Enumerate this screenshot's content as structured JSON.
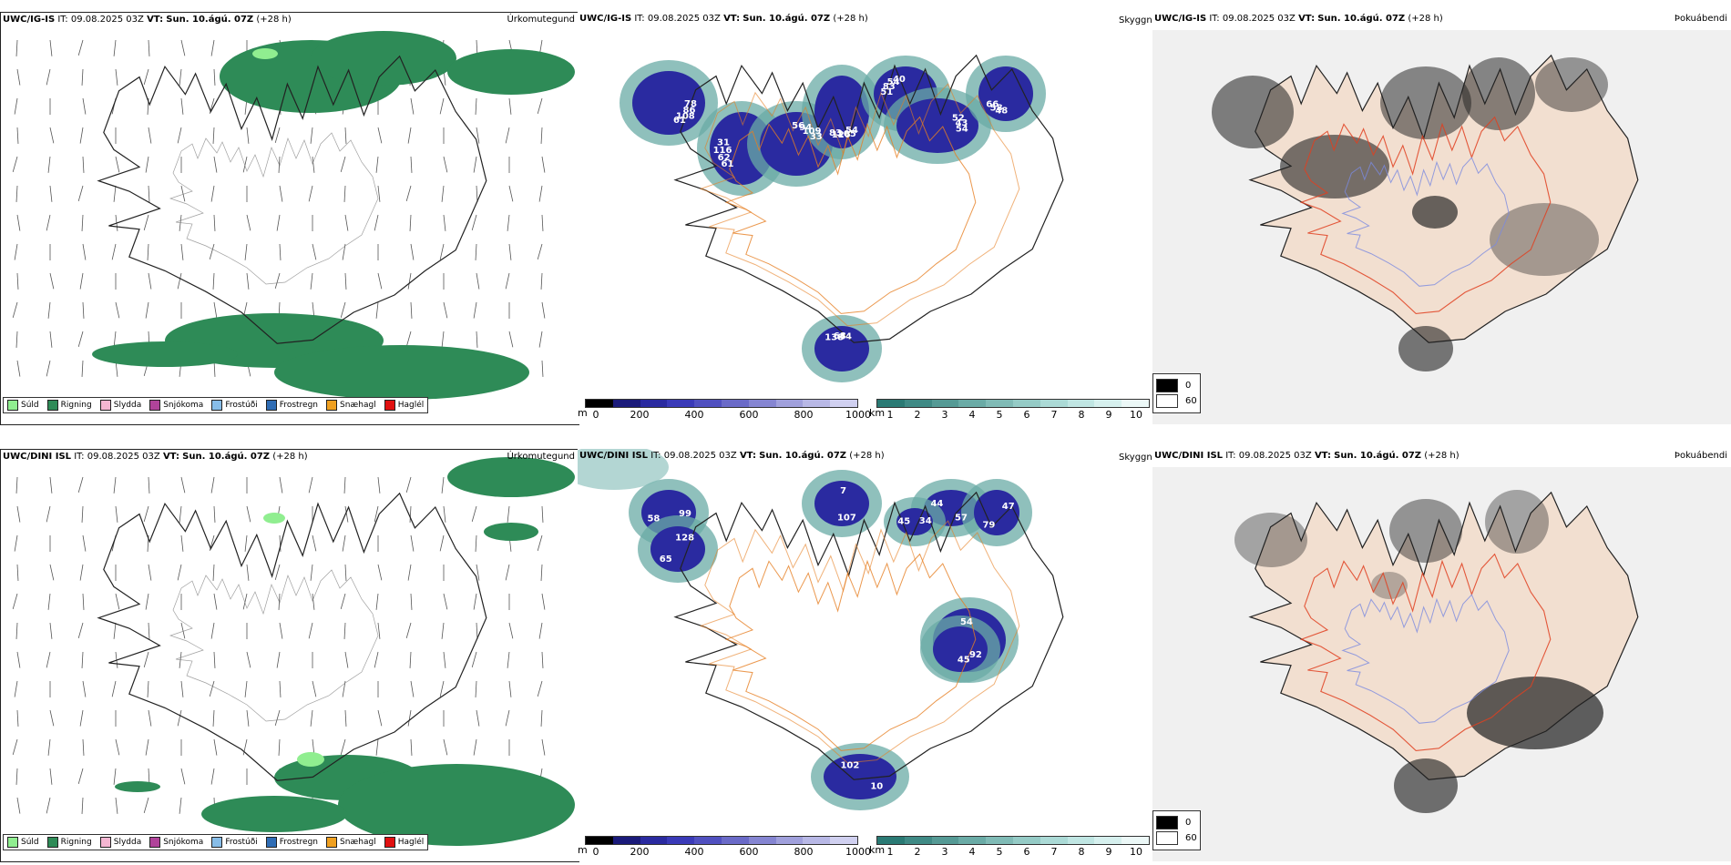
{
  "rows": [
    {
      "precip": {
        "model": "UWC/IG-IS",
        "it": "IT: 09.08.2025 03Z",
        "vt_label": "VT:",
        "vt": "Sun. 10.ágú. 07Z",
        "lead": "(+28 h)",
        "title_right": "Úrkomutegund"
      },
      "visibility": {
        "model": "UWC/IG-IS",
        "it": "IT: 09.08.2025 03Z",
        "vt_label": "VT:",
        "vt": "Sun. 10.ágú. 07Z",
        "lead": "(+28 h)",
        "title_right": "Skyggni",
        "labels": [
          "78",
          "61",
          "56",
          "54",
          "51",
          "52",
          "48",
          "138",
          "86",
          "62",
          "94",
          "105",
          "83",
          "43",
          "58",
          "68",
          "108",
          "116",
          "109",
          "126",
          "54",
          "54",
          "66",
          "44",
          "61",
          "31",
          "33",
          "83",
          "40"
        ]
      },
      "fog": {
        "model": "UWC/IG-IS",
        "it": "IT: 09.08.2025 03Z",
        "vt_label": "VT:",
        "vt": "Sun. 10.ágú. 07Z",
        "lead": "(+28 h)",
        "title_right": "Þokuábendi"
      }
    },
    {
      "precip": {
        "model": "UWC/DINI ISL",
        "it": "IT: 09.08.2025 03Z",
        "vt_label": "VT:",
        "vt": "Sun. 10.ágú. 07Z",
        "lead": "(+28 h)",
        "title_right": "Úrkomutegund"
      },
      "visibility": {
        "model": "UWC/DINI ISL",
        "it": "IT: 09.08.2025 03Z",
        "vt_label": "VT:",
        "vt": "Sun. 10.ágú. 07Z",
        "lead": "(+28 h)",
        "title_right": "Skyggni",
        "labels": [
          "99",
          "65",
          "7",
          "57",
          "45",
          "47",
          "45",
          "102",
          "92",
          "58",
          "128",
          "107",
          "44",
          "34",
          "79",
          "54",
          "10"
        ]
      },
      "fog": {
        "model": "UWC/DINI ISL",
        "it": "IT: 09.08.2025 03Z",
        "vt_label": "VT:",
        "vt": "Sun. 10.ágú. 07Z",
        "lead": "(+28 h)",
        "title_right": "Þokuábendi"
      }
    }
  ],
  "precip_legend": [
    {
      "label": "Súld",
      "color": "#90ee90"
    },
    {
      "label": "Rigning",
      "color": "#2e8b57"
    },
    {
      "label": "Slydda",
      "color": "#f4b6d2"
    },
    {
      "label": "Snjókoma",
      "color": "#b0439a"
    },
    {
      "label": "Frostúði",
      "color": "#87bde8"
    },
    {
      "label": "Frostregn",
      "color": "#2f6db5"
    },
    {
      "label": "Snæhagl",
      "color": "#f0a020"
    },
    {
      "label": "Haglél",
      "color": "#e01010"
    }
  ],
  "ceiling_bar": {
    "unit": "m",
    "ticks": [
      "0",
      "200",
      "400",
      "600",
      "800",
      "1000"
    ],
    "colors": [
      "#000000",
      "#1a1a7a",
      "#2a2aa0",
      "#3a3ab8",
      "#5050c0",
      "#6a6ac8",
      "#8585d2",
      "#a0a0dc",
      "#b8b8e6",
      "#d0d0f0"
    ]
  },
  "vis_bar": {
    "unit": "km",
    "ticks": [
      "1",
      "2",
      "3",
      "4",
      "5",
      "6",
      "7",
      "8",
      "9",
      "10"
    ],
    "colors": [
      "#2a7a74",
      "#3f8a85",
      "#559a95",
      "#6aaba6",
      "#80bbb6",
      "#95cbc6",
      "#abdad6",
      "#c0e6e3",
      "#d6f0ee",
      "#ecf8f7"
    ]
  },
  "fog_legend": [
    {
      "label": "0",
      "color": "#000000"
    },
    {
      "label": "60",
      "color": "#ffffff"
    }
  ]
}
